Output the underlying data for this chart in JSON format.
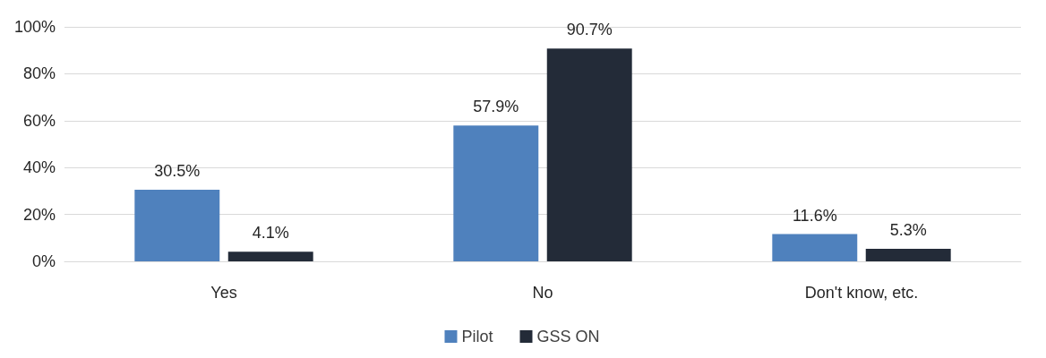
{
  "chart_data": {
    "type": "bar",
    "categories": [
      "Yes",
      "No",
      "Don't know, etc."
    ],
    "series": [
      {
        "name": "Pilot",
        "color": "#4f81bd",
        "values": [
          30.5,
          57.9,
          11.6
        ],
        "value_labels": [
          "30.5%",
          "57.9%",
          "11.6%"
        ]
      },
      {
        "name": "GSS ON",
        "color": "#232b38",
        "values": [
          4.1,
          90.7,
          5.3
        ],
        "value_labels": [
          "4.1%",
          "90.7%",
          "5.3%"
        ]
      }
    ],
    "ylim": [
      0,
      100
    ],
    "yticks": [
      {
        "value": 0,
        "label": "0%"
      },
      {
        "value": 20,
        "label": "20%"
      },
      {
        "value": 40,
        "label": "40%"
      },
      {
        "value": 60,
        "label": "60%"
      },
      {
        "value": 80,
        "label": "80%"
      },
      {
        "value": 100,
        "label": "100%"
      }
    ],
    "grid": "y",
    "legend": "bottom"
  }
}
